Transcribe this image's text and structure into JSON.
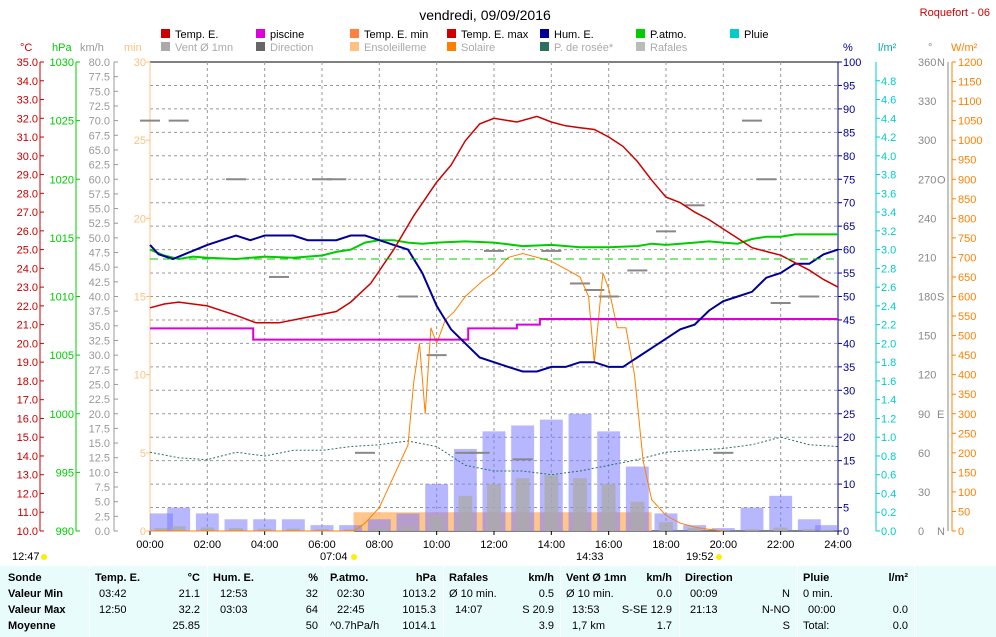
{
  "title": "vendredi, 09/09/2016",
  "station": "Roquefort - 06",
  "legend": [
    {
      "label": "Temp. E.",
      "color": "#cc0000"
    },
    {
      "label": "piscine",
      "color": "#dd00dd"
    },
    {
      "label": "Temp. E. min",
      "color": "#ff8040"
    },
    {
      "label": "Temp. E. max",
      "color": "#cc0000"
    },
    {
      "label": "Hum. E.",
      "color": "#000099"
    },
    {
      "label": "P.atmo.",
      "color": "#00cc00"
    },
    {
      "label": "Pluie",
      "color": "#00cccc"
    },
    {
      "label": "Vent Ø 1mn",
      "color": "#aaaaaa"
    },
    {
      "label": "Direction",
      "color": "#666666"
    },
    {
      "label": "Ensoleilleme",
      "color": "#ffc080"
    },
    {
      "label": "Solaire",
      "color": "#ff8000"
    },
    {
      "label": "P. de rosée*",
      "color": "#2e7060"
    },
    {
      "label": "Rafales",
      "color": "#bbbbbb"
    }
  ],
  "axis_units": {
    "temp": "°C",
    "press": "hPa",
    "wind": "km/h",
    "sun": "min",
    "hum": "%",
    "rain": "l/m²",
    "dir": "°",
    "solar": "W/m²"
  },
  "colors": {
    "temp": "#cc0000",
    "press": "#00cc00",
    "wind": "#aaaaaa",
    "sun": "#ffc080",
    "hum": "#000099",
    "rain": "#00cccc",
    "dir": "#888888",
    "solar": "#ff8000",
    "pool": "#dd00dd",
    "dew": "#2e7060",
    "gusts": "#7b7bff"
  },
  "sun_times": {
    "sunrise": "07:04",
    "noon": "14:33",
    "sunset": "19:52",
    "daylength": "12:47"
  },
  "chart_data": {
    "type": "line",
    "x_ticks": [
      "00:00",
      "02:00",
      "04:00",
      "06:00",
      "08:00",
      "10:00",
      "12:00",
      "14:00",
      "16:00",
      "18:00",
      "20:00",
      "22:00",
      "24:00"
    ],
    "axes": {
      "temp": {
        "range": [
          10,
          35
        ],
        "ticks": [
          "10.0",
          "11.0",
          "12.0",
          "13.0",
          "14.0",
          "15.0",
          "16.0",
          "17.0",
          "18.0",
          "19.0",
          "20.0",
          "21.0",
          "22.0",
          "23.0",
          "24.0",
          "25.0",
          "26.0",
          "27.0",
          "28.0",
          "29.0",
          "30.0",
          "31.0",
          "32.0",
          "33.0",
          "34.0",
          "35.0"
        ]
      },
      "press": {
        "range": [
          990,
          1030
        ],
        "ticks": [
          "990",
          "995",
          "1000",
          "1005",
          "1010",
          "1015",
          "1020",
          "1025",
          "1030"
        ]
      },
      "wind": {
        "range": [
          0,
          80
        ],
        "ticks": [
          "0.0",
          "2.5",
          "5.0",
          "7.5",
          "10.0",
          "12.5",
          "15.0",
          "17.5",
          "20.0",
          "22.5",
          "25.0",
          "27.5",
          "30.0",
          "32.5",
          "35.0",
          "37.5",
          "40.0",
          "42.5",
          "45.0",
          "47.5",
          "50.0",
          "52.5",
          "55.0",
          "57.5",
          "60.0",
          "62.5",
          "65.0",
          "67.5",
          "70.0",
          "72.5",
          "75.0",
          "77.5",
          "80.0"
        ]
      },
      "sun": {
        "range": [
          0,
          30
        ],
        "ticks": [
          "0",
          "5",
          "10",
          "15",
          "20",
          "25",
          "30"
        ]
      },
      "hum": {
        "range": [
          0,
          100
        ],
        "ticks": [
          "0",
          "5",
          "10",
          "15",
          "20",
          "25",
          "30",
          "35",
          "40",
          "45",
          "50",
          "55",
          "60",
          "65",
          "70",
          "75",
          "80",
          "85",
          "90",
          "95",
          "100"
        ]
      },
      "rain": {
        "range": [
          0,
          5
        ],
        "ticks": [
          "0.0",
          "0.2",
          "0.4",
          "0.6",
          "0.8",
          "1.0",
          "1.2",
          "1.4",
          "1.6",
          "1.8",
          "2.0",
          "2.2",
          "2.4",
          "2.6",
          "2.8",
          "3.0",
          "3.2",
          "3.4",
          "3.6",
          "3.8",
          "4.0",
          "4.2",
          "4.4",
          "4.6",
          "4.8"
        ]
      },
      "dir": {
        "range": [
          0,
          360
        ],
        "ticks": [
          "0",
          "30",
          "60",
          "90",
          "120",
          "150",
          "180",
          "210",
          "240",
          "270",
          "300",
          "330",
          "360"
        ],
        "labels": {
          "0": "N",
          "90": "E",
          "180": "S",
          "270": "O",
          "360": "N"
        }
      },
      "solar": {
        "range": [
          0,
          1200
        ],
        "ticks": [
          "0",
          "50",
          "100",
          "150",
          "200",
          "250",
          "300",
          "350",
          "400",
          "450",
          "500",
          "550",
          "600",
          "650",
          "700",
          "750",
          "800",
          "850",
          "900",
          "950",
          "1000",
          "1050",
          "1100",
          "1150",
          "1200"
        ]
      }
    },
    "series": [
      {
        "name": "Temp. E.",
        "axis": "temp",
        "x": [
          0,
          0.5,
          1,
          2,
          3,
          3.7,
          4.5,
          5.5,
          6.5,
          7,
          7.7,
          8.5,
          9.2,
          10,
          10.5,
          11,
          11.5,
          12,
          12.8,
          13.5,
          14,
          14.5,
          15,
          15.5,
          16,
          16.5,
          17,
          17.5,
          18,
          18.5,
          19,
          19.5,
          20,
          20.5,
          21,
          21.5,
          22,
          22.5,
          23,
          23.5,
          24
        ],
        "y": [
          21.9,
          22.1,
          22.2,
          22.0,
          21.5,
          21.1,
          21.1,
          21.4,
          21.7,
          22.2,
          23.2,
          25.0,
          26.8,
          28.6,
          29.5,
          30.8,
          31.7,
          32.0,
          31.8,
          32.1,
          31.8,
          31.6,
          31.5,
          31.4,
          31.0,
          30.5,
          29.7,
          28.7,
          27.8,
          27.5,
          27.0,
          26.6,
          26.1,
          25.6,
          25.1,
          24.9,
          24.7,
          24.3,
          23.9,
          23.4,
          23.0
        ]
      },
      {
        "name": "Hum. E.",
        "axis": "hum",
        "x": [
          0,
          0.3,
          0.8,
          1.2,
          2,
          2.5,
          3,
          3.5,
          4,
          5,
          5.5,
          6,
          6.5,
          7,
          7.5,
          8,
          8.5,
          9,
          9.5,
          10,
          10.5,
          11,
          11.5,
          12,
          12.5,
          13,
          13.5,
          14,
          14.5,
          15,
          15.5,
          16,
          16.5,
          17,
          17.5,
          18,
          18.5,
          19,
          19.5,
          20,
          20.5,
          21,
          21.5,
          22,
          22.5,
          23,
          23.5,
          24
        ],
        "y": [
          61,
          59,
          58,
          59,
          61,
          62,
          63,
          62,
          63,
          63,
          62,
          62,
          62,
          63,
          63,
          62,
          61,
          60,
          55,
          48,
          43,
          40,
          37,
          36,
          35,
          34,
          34,
          35,
          35,
          36,
          36,
          35,
          35,
          37,
          39,
          41,
          43,
          44,
          47,
          49,
          50,
          51,
          54,
          55,
          57,
          57,
          59,
          60
        ]
      },
      {
        "name": "P.atmo.",
        "axis": "press",
        "x": [
          0,
          0.5,
          1,
          1.5,
          2,
          3,
          4,
          5,
          6,
          6.5,
          7,
          7.5,
          8,
          8.5,
          9,
          9.5,
          10,
          11,
          12,
          13,
          14,
          15,
          16,
          17,
          17.5,
          18,
          18.5,
          19,
          19.5,
          20,
          20.5,
          21,
          21.5,
          22,
          22.5,
          23,
          23.5,
          24
        ],
        "y": [
          1014.0,
          1013.5,
          1013.2,
          1013.4,
          1013.3,
          1013.2,
          1013.4,
          1013.3,
          1013.5,
          1013.8,
          1014.0,
          1014.6,
          1014.8,
          1014.8,
          1014.6,
          1014.5,
          1014.6,
          1014.7,
          1014.6,
          1014.3,
          1014.4,
          1014.2,
          1014.2,
          1014.3,
          1014.5,
          1014.4,
          1014.5,
          1014.6,
          1014.7,
          1014.6,
          1014.5,
          1014.9,
          1015.1,
          1015.1,
          1015.3,
          1015.3,
          1015.3,
          1015.3
        ]
      },
      {
        "name": "piscine",
        "axis": "temp",
        "x": [
          0,
          3.6,
          3.6,
          11.1,
          11.1,
          12.8,
          12.8,
          13.6,
          13.6,
          24
        ],
        "y": [
          20.8,
          20.8,
          20.2,
          20.2,
          20.8,
          20.8,
          21.0,
          21.0,
          21.3,
          21.3
        ]
      },
      {
        "name": "P. de rosée*",
        "axis": "temp",
        "x": [
          0,
          1,
          2,
          3,
          4,
          5,
          6,
          7,
          8,
          9,
          10,
          11,
          12,
          13,
          14,
          15,
          16,
          17,
          18,
          19,
          20,
          21,
          22,
          23,
          24
        ],
        "y": [
          14.2,
          13.9,
          13.8,
          14.2,
          14.0,
          14.3,
          14.3,
          14.5,
          14.6,
          14.8,
          14.5,
          13.5,
          13.2,
          13.2,
          13.0,
          13.2,
          13.5,
          13.8,
          14.2,
          14.3,
          14.4,
          14.6,
          15.0,
          14.6,
          14.5
        ]
      },
      {
        "name": "Solaire",
        "axis": "solar",
        "x": [
          0,
          7.1,
          7.5,
          8,
          8.5,
          9,
          9.2,
          9.4,
          9.6,
          9.8,
          10,
          10.3,
          10.6,
          11,
          11.3,
          11.6,
          12,
          12.5,
          13,
          13.5,
          14,
          14.5,
          15,
          15.3,
          15.5,
          15.8,
          16,
          16.3,
          16.6,
          16.9,
          17.2,
          17.5,
          18,
          18.5,
          19,
          19.5,
          20
        ],
        "y": [
          0,
          0,
          20,
          60,
          140,
          220,
          380,
          480,
          300,
          520,
          480,
          540,
          560,
          600,
          620,
          640,
          660,
          700,
          710,
          700,
          690,
          670,
          650,
          600,
          430,
          660,
          620,
          520,
          520,
          400,
          180,
          80,
          40,
          20,
          10,
          4,
          0
        ]
      },
      {
        "name": "Vent Ø 1mn",
        "axis": "wind",
        "x": [
          0,
          1,
          2,
          3,
          4,
          5,
          6,
          7,
          8,
          9,
          10,
          11,
          12,
          13,
          14,
          15,
          16,
          17,
          18,
          19,
          20,
          21,
          22,
          23,
          24
        ],
        "y": [
          0.5,
          0.8,
          0.6,
          0.5,
          0.4,
          0.4,
          0.3,
          0.3,
          0.5,
          0.8,
          2.5,
          6,
          8,
          9,
          9.5,
          9,
          8,
          5,
          1.5,
          0.5,
          0.2,
          0.3,
          0.6,
          0.3,
          0.2
        ]
      },
      {
        "name": "Rafales",
        "axis": "wind",
        "x": [
          0,
          1,
          2,
          3,
          4,
          5,
          6,
          7,
          8,
          9,
          10,
          11,
          12,
          13,
          14,
          15,
          16,
          17,
          18,
          19,
          20,
          21,
          22,
          23,
          24
        ],
        "y": [
          3,
          4,
          3,
          2,
          2,
          2,
          1,
          1,
          2,
          3,
          8,
          14,
          17,
          18,
          19,
          20,
          17,
          11,
          3,
          1,
          0.5,
          4,
          6,
          2,
          1
        ]
      },
      {
        "name": "Direction",
        "axis": "dir",
        "x": [
          0,
          1,
          3,
          4.5,
          6,
          6.5,
          7.5,
          9,
          10,
          11,
          11.5,
          12,
          13,
          14,
          15,
          15.5,
          16,
          17,
          18,
          19,
          20,
          21,
          21.5,
          22,
          23
        ],
        "y": [
          315,
          315,
          270,
          195,
          270,
          270,
          60,
          180,
          135,
          60,
          60,
          215,
          55,
          215,
          190,
          185,
          180,
          200,
          230,
          250,
          60,
          315,
          270,
          175,
          180
        ]
      }
    ]
  },
  "stats": {
    "headers": {
      "sonde": "Sonde",
      "temp": "Temp. E.",
      "temp_unit": "°C",
      "hum": "Hum. E.",
      "hum_unit": "%",
      "press": "P.atmo.",
      "press_unit": "hPa",
      "gust": "Rafales",
      "gust_unit": "km/h",
      "wind": "Vent Ø 1mn",
      "wind_unit": "km/h",
      "dir": "Direction",
      "rain": "Pluie",
      "rain_unit": "l/m²"
    },
    "row_labels": {
      "min": "Valeur Min",
      "max": "Valeur Max",
      "avg": "Moyenne"
    },
    "temp": {
      "min_time": "03:42",
      "min": "21.1",
      "max_time": "12:50",
      "max": "32.2",
      "avg": "25.85"
    },
    "hum": {
      "min_time": "12:53",
      "min": "32",
      "max_time": "03:03",
      "max": "64",
      "avg": "50"
    },
    "press": {
      "min_time": "02:30",
      "min": "1013.2",
      "max_time": "22:45",
      "max": "1015.3",
      "trend": "^0.7hPa/h",
      "avg": "1014.1"
    },
    "gust": {
      "min_label": "Ø 10 min.",
      "min": "0.5",
      "max_time": "14:07",
      "max": "S 20.9",
      "avg": "3.9"
    },
    "wind": {
      "min_label": "Ø 10 min.",
      "min": "0.0",
      "max_time": "13:53",
      "max": "S-SE 12.9",
      "dist": "1,7 km",
      "avg": "1.7"
    },
    "dir": {
      "min_time": "00:09",
      "min": "N",
      "max_time": "21:13",
      "max": "N-NO",
      "avg": "S"
    },
    "rain": {
      "min_label": "0 min.",
      "min": "",
      "max_time": "00:00",
      "max": "0.0",
      "avg_label": "Total:",
      "avg": "0.0"
    }
  }
}
